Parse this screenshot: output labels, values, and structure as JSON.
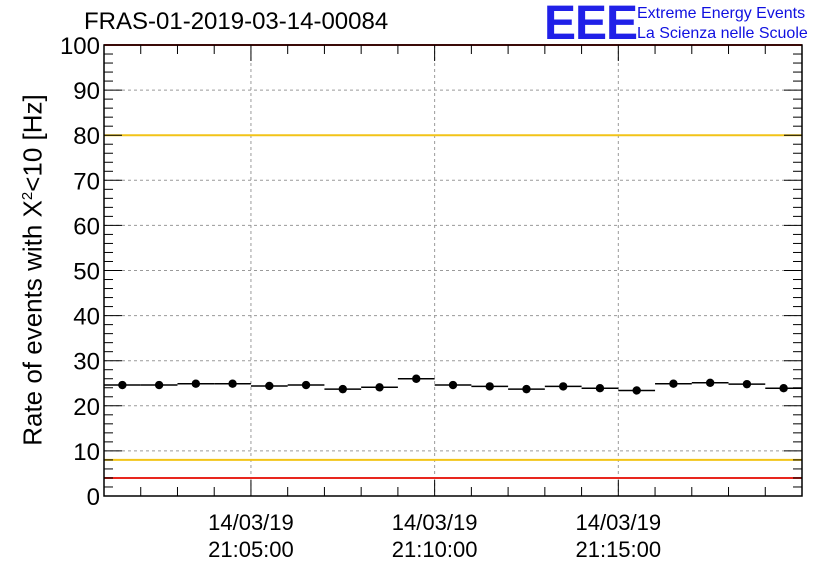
{
  "title": "FRAS-01-2019-03-14-00084",
  "logo": {
    "mark": "EEE",
    "line1": "Extreme Energy Events",
    "line2": "La Scienza nelle Scuole"
  },
  "chart_data": {
    "type": "scatter",
    "title": "FRAS-01-2019-03-14-00084",
    "ylabel": {
      "prefix": "Rate of events with X",
      "sup": "2",
      "suffix": "<10 [Hz]"
    },
    "xlabel": "",
    "ylim": [
      0,
      100
    ],
    "yticks": [
      0,
      10,
      20,
      30,
      40,
      50,
      60,
      70,
      80,
      90,
      100
    ],
    "xlim_minutes": [
      0,
      19
    ],
    "xticks": [
      {
        "minute": 4,
        "date": "14/03/19",
        "time": "21:05:00"
      },
      {
        "minute": 9,
        "date": "14/03/19",
        "time": "21:10:00"
      },
      {
        "minute": 14,
        "date": "14/03/19",
        "time": "21:15:00"
      }
    ],
    "grid": true,
    "series": [
      {
        "name": "rate",
        "bin_width_minutes": 1,
        "x_center_minutes": [
          0.5,
          1.5,
          2.5,
          3.5,
          4.5,
          5.5,
          6.5,
          7.5,
          8.5,
          9.5,
          10.5,
          11.5,
          12.5,
          13.5,
          14.5,
          15.5,
          16.5,
          17.5,
          18.5
        ],
        "values": [
          24.6,
          24.6,
          24.9,
          24.9,
          24.4,
          24.6,
          23.7,
          24.1,
          26.0,
          24.6,
          24.3,
          23.7,
          24.3,
          23.9,
          23.4,
          24.9,
          25.1,
          24.8,
          23.9
        ]
      }
    ],
    "reference_lines": [
      {
        "y": 80,
        "color": "#f2c418"
      },
      {
        "y": 8,
        "color": "#f2c418"
      },
      {
        "y": 100,
        "color": "#e8261e"
      },
      {
        "y": 4,
        "color": "#e8261e"
      }
    ]
  }
}
